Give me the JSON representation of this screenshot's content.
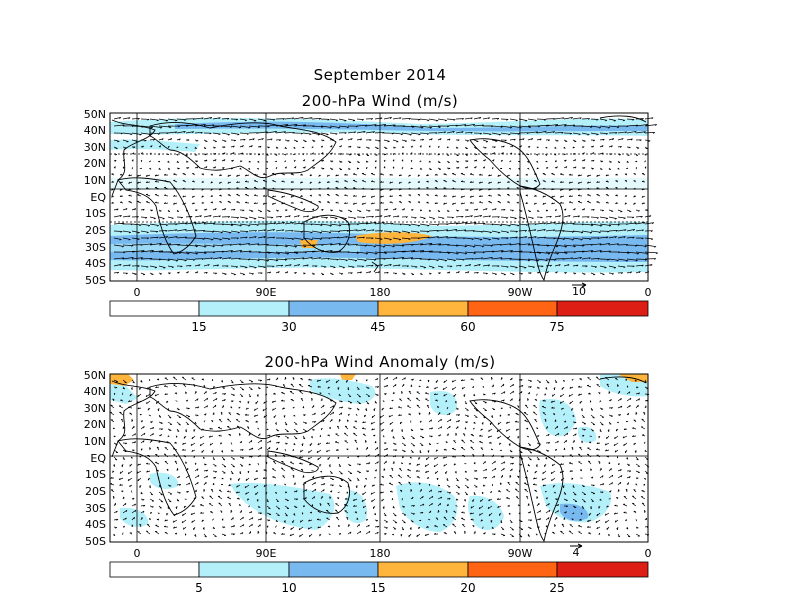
{
  "header": {
    "title": "September 2014"
  },
  "panels": [
    {
      "id": "wind",
      "title": "200-hPa Wind (m/s)",
      "lat_labels": [
        "50N",
        "40N",
        "30N",
        "20N",
        "10N",
        "EQ",
        "10S",
        "20S",
        "30S",
        "40S",
        "50S"
      ],
      "lon_labels": [
        "0",
        "90E",
        "180",
        "90W",
        "0"
      ],
      "reference_vector": "10",
      "colorbar": {
        "labels": [
          "15",
          "30",
          "45",
          "60",
          "75"
        ],
        "colors": [
          "#ffffff",
          "#b4f0fa",
          "#78b9f0",
          "#ffb43c",
          "#ff6414",
          "#dc1e14"
        ]
      }
    },
    {
      "id": "anomaly",
      "title": "200-hPa Wind Anomaly (m/s)",
      "lat_labels": [
        "50N",
        "40N",
        "30N",
        "20N",
        "10N",
        "EQ",
        "10S",
        "20S",
        "30S",
        "40S",
        "50S"
      ],
      "lon_labels": [
        "0",
        "90E",
        "180",
        "90W",
        "0"
      ],
      "reference_vector": "4",
      "colorbar": {
        "labels": [
          "5",
          "10",
          "15",
          "20",
          "25"
        ],
        "colors": [
          "#ffffff",
          "#b4f0fa",
          "#78b9f0",
          "#ffb43c",
          "#ff6414",
          "#dc1e14"
        ]
      }
    }
  ]
}
